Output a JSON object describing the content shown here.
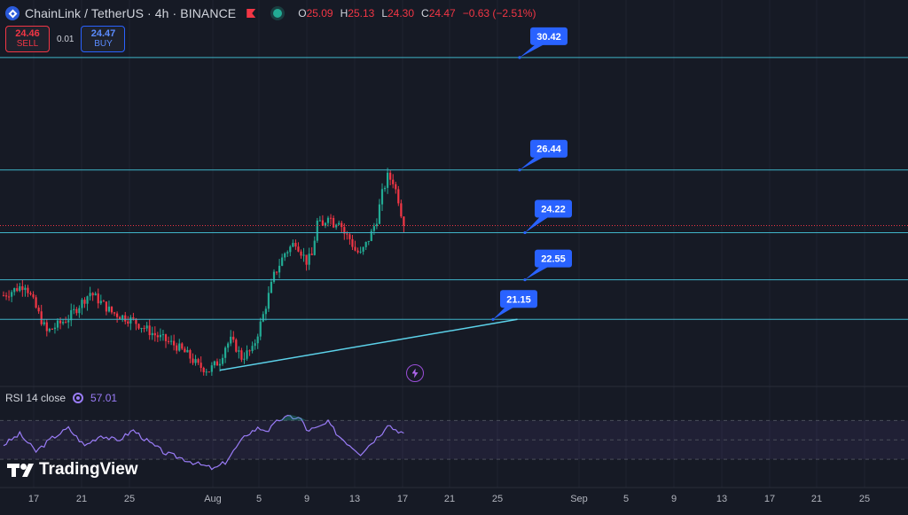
{
  "header": {
    "symbol": "ChainLink / TetherUS · 4h · BINANCE",
    "icons": {
      "coin": "chainlink-coin-icon",
      "flag": "flag-icon",
      "status": "market-status-icon"
    },
    "ohlc": {
      "o_label": "O",
      "o": "25.09",
      "h_label": "H",
      "h": "25.13",
      "l_label": "L",
      "l": "24.30",
      "c_label": "C",
      "c": "24.47",
      "change": "−0.63 (−2.51%)"
    }
  },
  "trade": {
    "sell_price": "24.46",
    "sell_label": "SELL",
    "spread": "0.01",
    "buy_price": "24.47",
    "buy_label": "BUY"
  },
  "rsi": {
    "label": "RSI 14 close",
    "value": "57.01"
  },
  "brand": {
    "name": "TradingView"
  },
  "colors": {
    "background": "#161a25",
    "grid": "#1f2330",
    "up": "#22ab94",
    "down": "#f23645",
    "level_line": "#3fb4c8",
    "trendline": "#5cd2ea",
    "callout": "#2962ff",
    "rsi_line": "#9a7cf7",
    "axis_text": "#b2b5be"
  },
  "chart_data": {
    "type": "candlestick",
    "timeframe": "4h",
    "x_ticks": [
      "17",
      "21",
      "25",
      "Aug",
      "5",
      "9",
      "13",
      "17",
      "21",
      "25",
      "Sep",
      "5",
      "9",
      "13",
      "17",
      "21",
      "25"
    ],
    "price_path": [
      [
        0,
        22.0
      ],
      [
        4,
        22.4
      ],
      [
        8,
        20.7
      ],
      [
        12,
        21.2
      ],
      [
        16,
        22.1
      ],
      [
        20,
        21.4
      ],
      [
        24,
        21.1
      ],
      [
        28,
        20.6
      ],
      [
        32,
        20.2
      ],
      [
        34,
        19.9
      ],
      [
        36,
        19.5
      ],
      [
        38,
        19.35
      ],
      [
        40,
        19.7
      ],
      [
        41,
        20.2
      ],
      [
        42,
        20.4
      ],
      [
        43,
        20.15
      ],
      [
        44,
        19.8
      ],
      [
        45,
        19.95
      ],
      [
        46,
        20.05
      ],
      [
        48,
        21.3
      ],
      [
        50,
        22.7
      ],
      [
        52,
        23.5
      ],
      [
        54,
        23.9
      ],
      [
        56,
        23.2
      ],
      [
        57,
        23.4
      ],
      [
        58,
        24.6
      ],
      [
        59,
        24.4
      ],
      [
        60,
        24.9
      ],
      [
        61,
        24.55
      ],
      [
        62,
        24.7
      ],
      [
        63,
        24.2
      ],
      [
        64,
        24.0
      ],
      [
        65,
        23.6
      ],
      [
        66,
        23.45
      ],
      [
        67,
        23.8
      ],
      [
        68,
        24.2
      ],
      [
        69,
        24.7
      ],
      [
        70,
        25.6
      ],
      [
        71,
        26.2
      ],
      [
        72,
        26.05
      ],
      [
        73,
        25.4
      ],
      [
        74,
        24.47
      ]
    ],
    "last_price": 24.47,
    "levels": [
      30.42,
      26.44,
      24.22,
      22.55,
      21.15
    ],
    "level_labels": [
      "30.42",
      "26.44",
      "24.22",
      "22.55",
      "21.15"
    ],
    "trendline": {
      "from": [
        40,
        19.35
      ],
      "to": [
        95,
        21.15
      ]
    },
    "rsi_series": [
      [
        0,
        45
      ],
      [
        3,
        56
      ],
      [
        6,
        38
      ],
      [
        9,
        52
      ],
      [
        12,
        62
      ],
      [
        15,
        44
      ],
      [
        18,
        55
      ],
      [
        21,
        49
      ],
      [
        24,
        60
      ],
      [
        27,
        47
      ],
      [
        30,
        36
      ],
      [
        33,
        31
      ],
      [
        36,
        25
      ],
      [
        39,
        20
      ],
      [
        41,
        27
      ],
      [
        43,
        42
      ],
      [
        45,
        56
      ],
      [
        47,
        62
      ],
      [
        49,
        60
      ],
      [
        51,
        71
      ],
      [
        53,
        74
      ],
      [
        55,
        72
      ],
      [
        56,
        60
      ],
      [
        58,
        62
      ],
      [
        60,
        68
      ],
      [
        62,
        54
      ],
      [
        64,
        45
      ],
      [
        66,
        36
      ],
      [
        68,
        47
      ],
      [
        70,
        58
      ],
      [
        71,
        67
      ],
      [
        72,
        62
      ],
      [
        74,
        57.01
      ]
    ],
    "rsi_bands": [
      70,
      50,
      30
    ]
  }
}
